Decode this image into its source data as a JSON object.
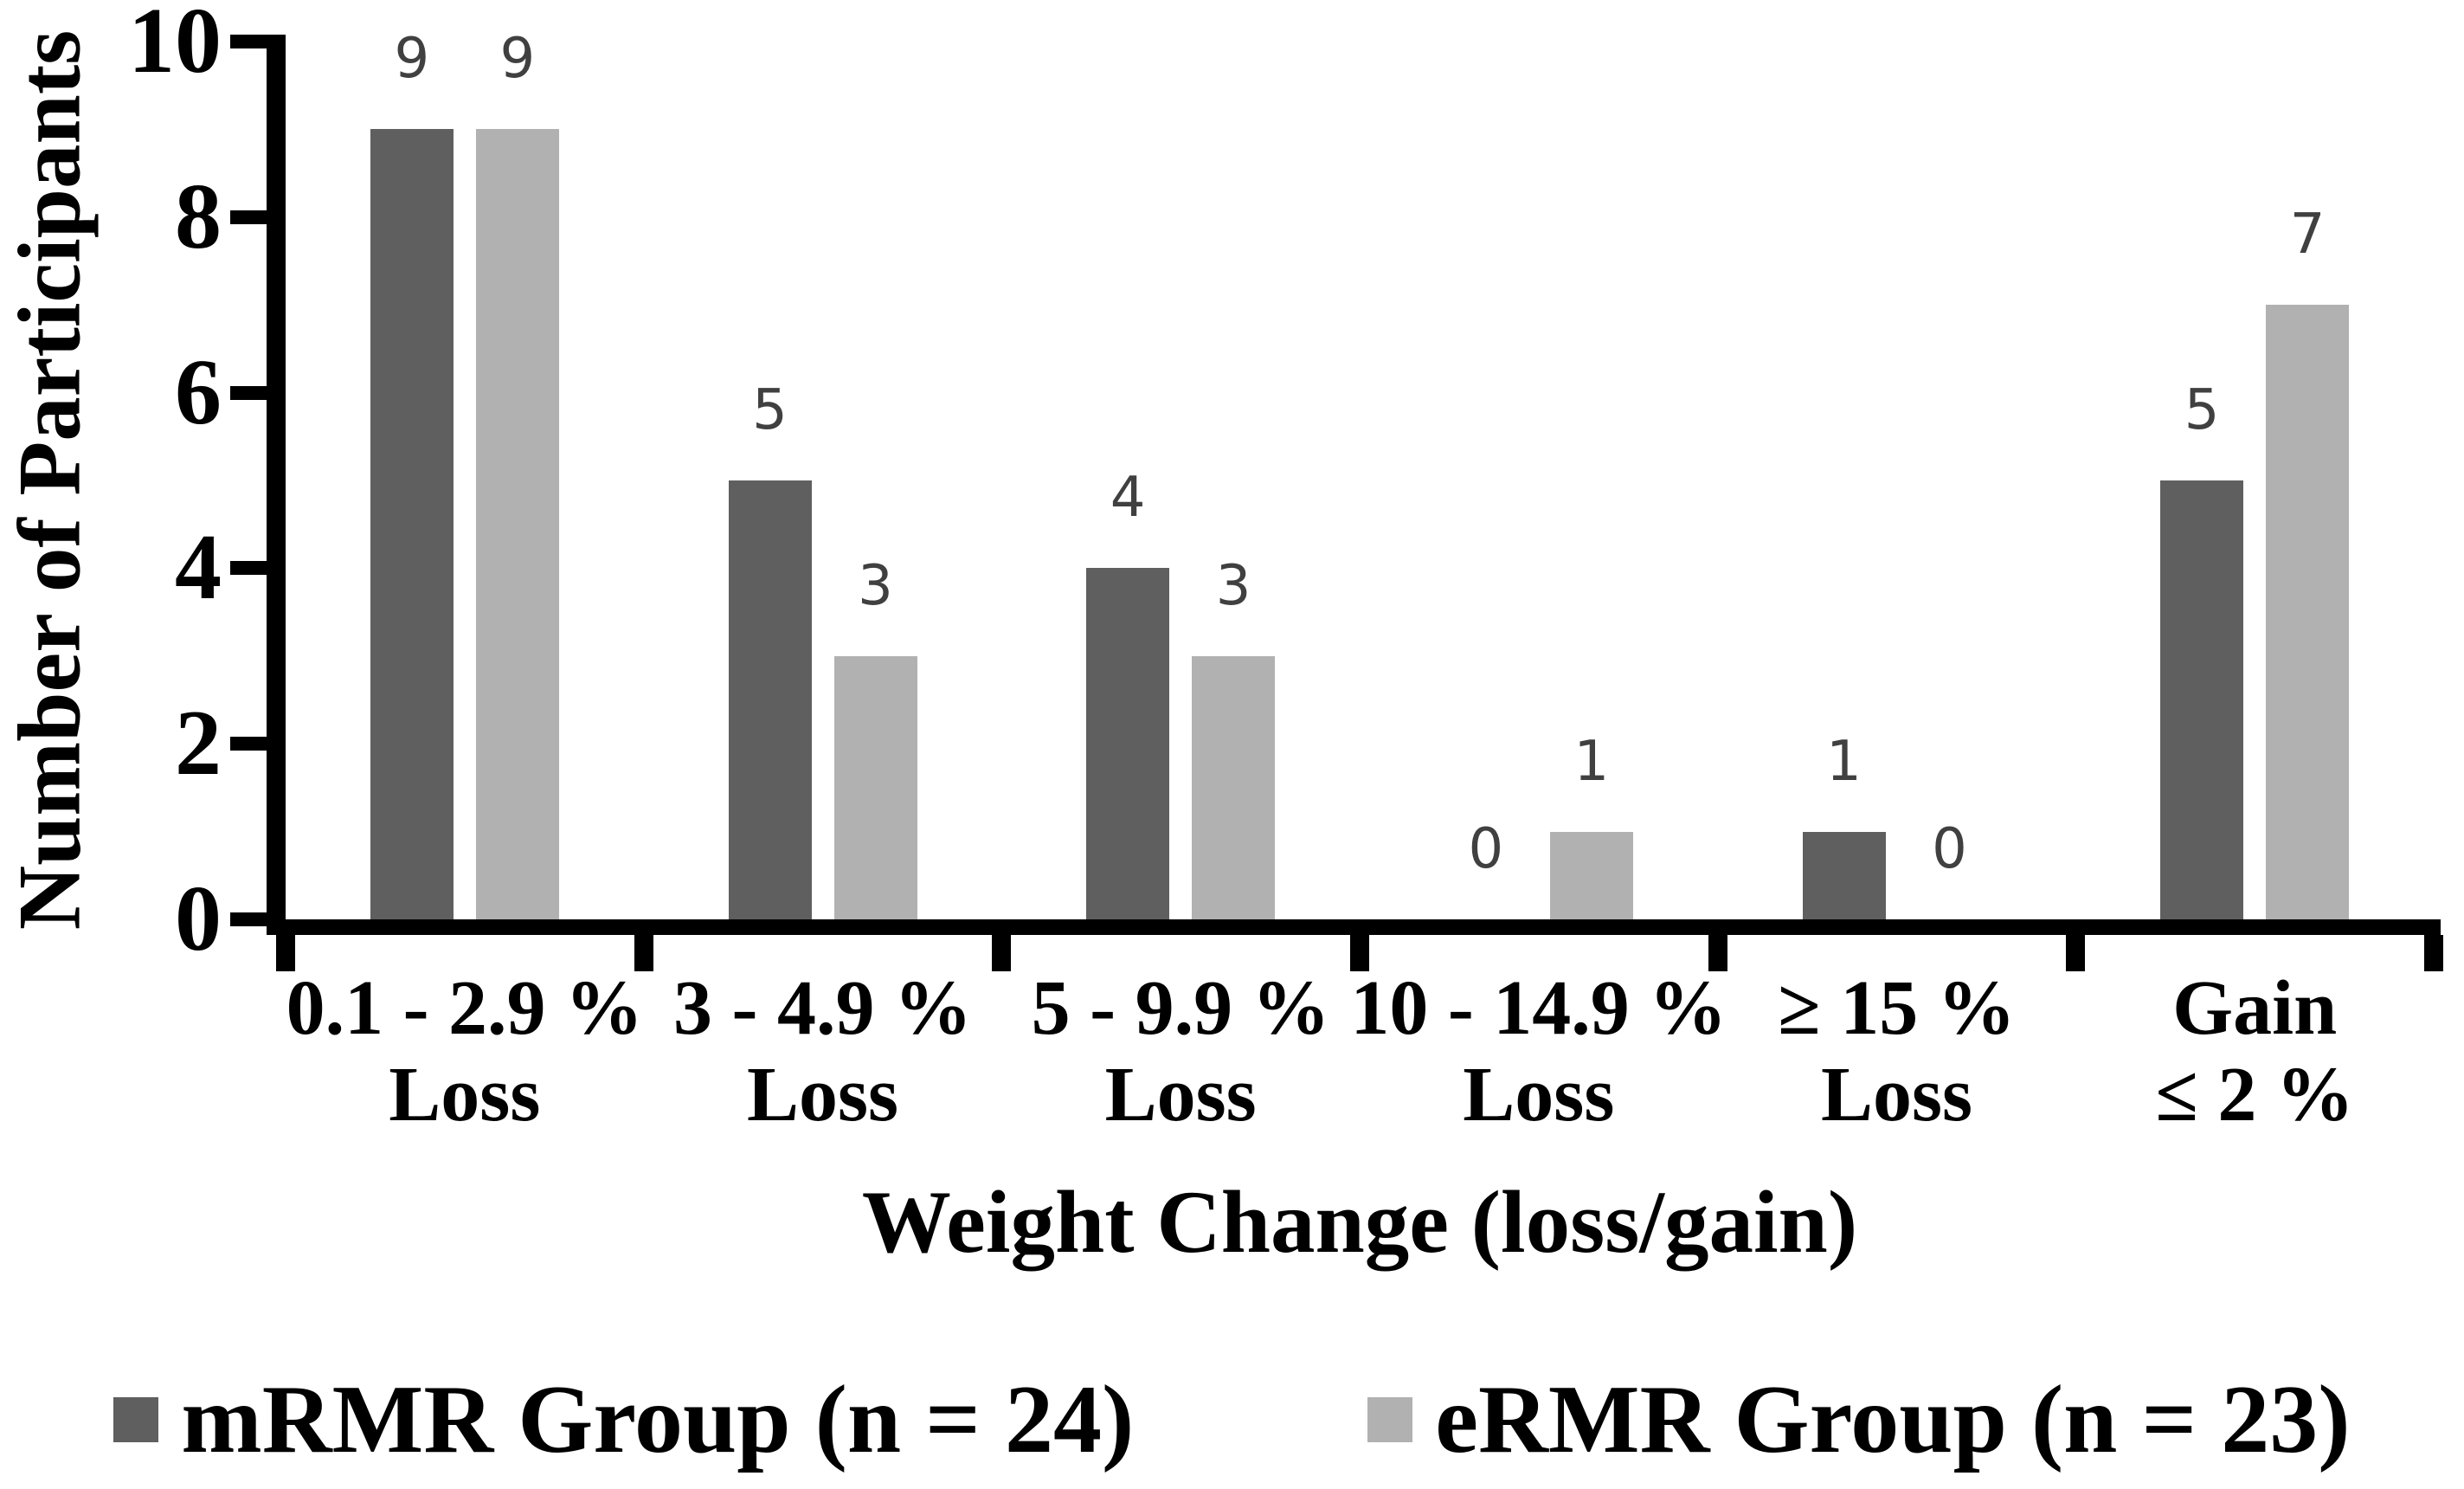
{
  "chart_data": {
    "type": "bar",
    "title": "",
    "ylabel": "Number of Participants",
    "xlabel": "Weight Change (loss/gain)",
    "ylim": [
      0,
      10
    ],
    "yticks": [
      0,
      2,
      4,
      6,
      8,
      10
    ],
    "grid": false,
    "legend_position": "bottom-center",
    "data_labels_shown": true,
    "categories": [
      [
        "0.1 - 2.9 %",
        "Loss"
      ],
      [
        "3 - 4.9 %",
        "Loss"
      ],
      [
        "5 - 9.9 %",
        "Loss"
      ],
      [
        "10 - 14.9 %",
        "Loss"
      ],
      [
        "≥ 15 %",
        "Loss"
      ],
      [
        "Gain",
        "≤ 2 %"
      ]
    ],
    "series": [
      {
        "name": "mRMR Group (n = 24)",
        "color": "#5f5f5f",
        "values": [
          9,
          5,
          4,
          0,
          1,
          5
        ]
      },
      {
        "name": "eRMR Group (n = 23)",
        "color": "#b1b1b1",
        "values": [
          9,
          3,
          3,
          1,
          0,
          7
        ]
      }
    ],
    "colors": {
      "axis": "#000000",
      "data_label": "#404040",
      "category_label": "#000000",
      "background": "#ffffff"
    }
  }
}
